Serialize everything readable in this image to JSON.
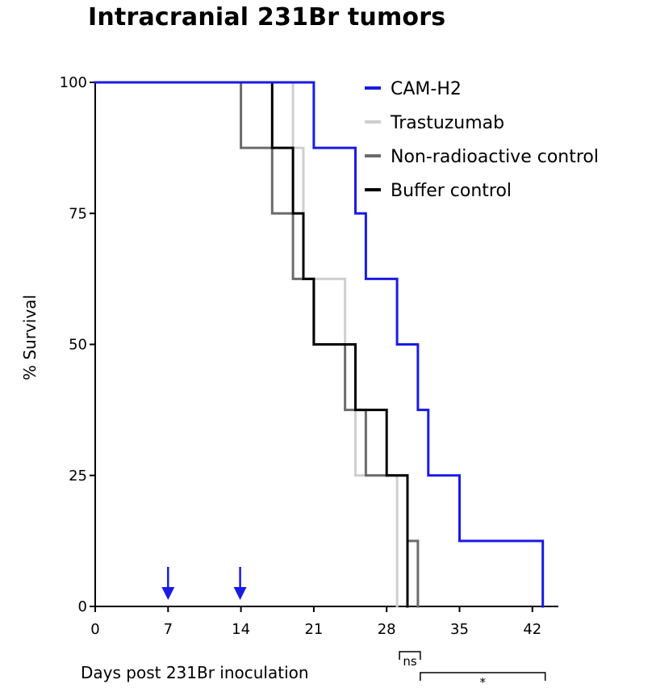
{
  "chart_data": {
    "type": "line",
    "subtype": "kaplan-meier step",
    "title": "Intracranial 231Br tumors",
    "xlabel": "Days post 231Br inoculation",
    "ylabel": "% Survival",
    "xlim": [
      0,
      45
    ],
    "ylim": [
      0,
      100
    ],
    "x_ticks": [
      0,
      7,
      14,
      21,
      28,
      35,
      42
    ],
    "y_ticks": [
      0,
      25,
      50,
      75,
      100
    ],
    "legend_position": "top-right",
    "series": [
      {
        "name": "Trastuzumab",
        "color": "#cfcfcf",
        "points": [
          [
            0,
            100
          ],
          [
            19,
            100
          ],
          [
            19,
            87.5
          ],
          [
            20,
            87.5
          ],
          [
            20,
            62.5
          ],
          [
            24,
            62.5
          ],
          [
            24,
            50
          ],
          [
            25,
            50
          ],
          [
            25,
            25
          ],
          [
            29,
            25
          ],
          [
            29,
            0
          ]
        ]
      },
      {
        "name": "Non-radioactive control",
        "color": "#6b6b6b",
        "points": [
          [
            0,
            100
          ],
          [
            14,
            100
          ],
          [
            14,
            87.5
          ],
          [
            17,
            87.5
          ],
          [
            17,
            75
          ],
          [
            19,
            75
          ],
          [
            19,
            62.5
          ],
          [
            21,
            62.5
          ],
          [
            21,
            50
          ],
          [
            24,
            50
          ],
          [
            24,
            37.5
          ],
          [
            26,
            37.5
          ],
          [
            26,
            25
          ],
          [
            30,
            25
          ],
          [
            30,
            12.5
          ],
          [
            31,
            12.5
          ],
          [
            31,
            0
          ]
        ]
      },
      {
        "name": "Buffer control",
        "color": "#000000",
        "points": [
          [
            0,
            100
          ],
          [
            17,
            100
          ],
          [
            17,
            87.5
          ],
          [
            19,
            87.5
          ],
          [
            19,
            75
          ],
          [
            20,
            75
          ],
          [
            20,
            62.5
          ],
          [
            21,
            62.5
          ],
          [
            21,
            50
          ],
          [
            25,
            50
          ],
          [
            25,
            37.5
          ],
          [
            28,
            37.5
          ],
          [
            28,
            25
          ],
          [
            30,
            25
          ],
          [
            30,
            0
          ]
        ]
      },
      {
        "name": "CAM-H2",
        "color": "#1a1ae6",
        "points": [
          [
            0,
            100
          ],
          [
            21,
            100
          ],
          [
            21,
            87.5
          ],
          [
            25,
            87.5
          ],
          [
            25,
            75
          ],
          [
            26,
            75
          ],
          [
            26,
            62.5
          ],
          [
            29,
            62.5
          ],
          [
            29,
            50
          ],
          [
            31,
            50
          ],
          [
            31,
            37.5
          ],
          [
            32,
            37.5
          ],
          [
            32,
            25
          ],
          [
            35,
            25
          ],
          [
            35,
            12.5
          ],
          [
            43,
            12.5
          ],
          [
            43,
            0
          ]
        ]
      }
    ],
    "legend_order": [
      "CAM-H2",
      "Trastuzumab",
      "Non-radioactive control",
      "Buffer control"
    ],
    "dosing_arrows": {
      "days": [
        7,
        14
      ],
      "color": "#1a1ae6"
    },
    "significance": [
      {
        "label": "ns",
        "from": 29,
        "to": 31
      },
      {
        "label": "*",
        "from": 31,
        "to": 43
      }
    ]
  }
}
